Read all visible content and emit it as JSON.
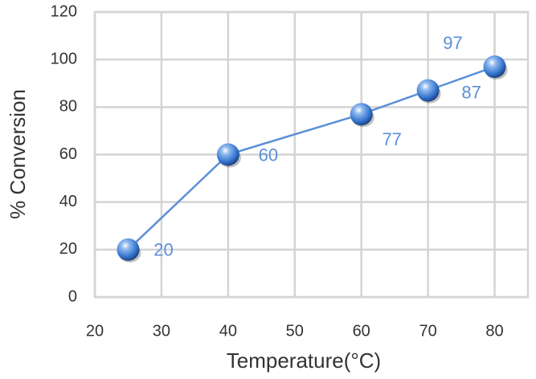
{
  "chart_data": {
    "type": "line",
    "x_label": "Temperature(°C)",
    "y_label": "% Conversion",
    "series": [
      {
        "name": "% Conversion",
        "color": "#5b8fd9",
        "x": [
          25,
          40,
          60,
          70,
          80
        ],
        "values": [
          20,
          60,
          77,
          87,
          97
        ]
      }
    ],
    "xlim": [
      20,
      85
    ],
    "xticks": [
      20,
      30,
      40,
      50,
      60,
      70,
      80
    ],
    "ylim": [
      0,
      120
    ],
    "yticks": [
      0,
      20,
      40,
      60,
      80,
      100,
      120
    ],
    "grid": true
  }
}
